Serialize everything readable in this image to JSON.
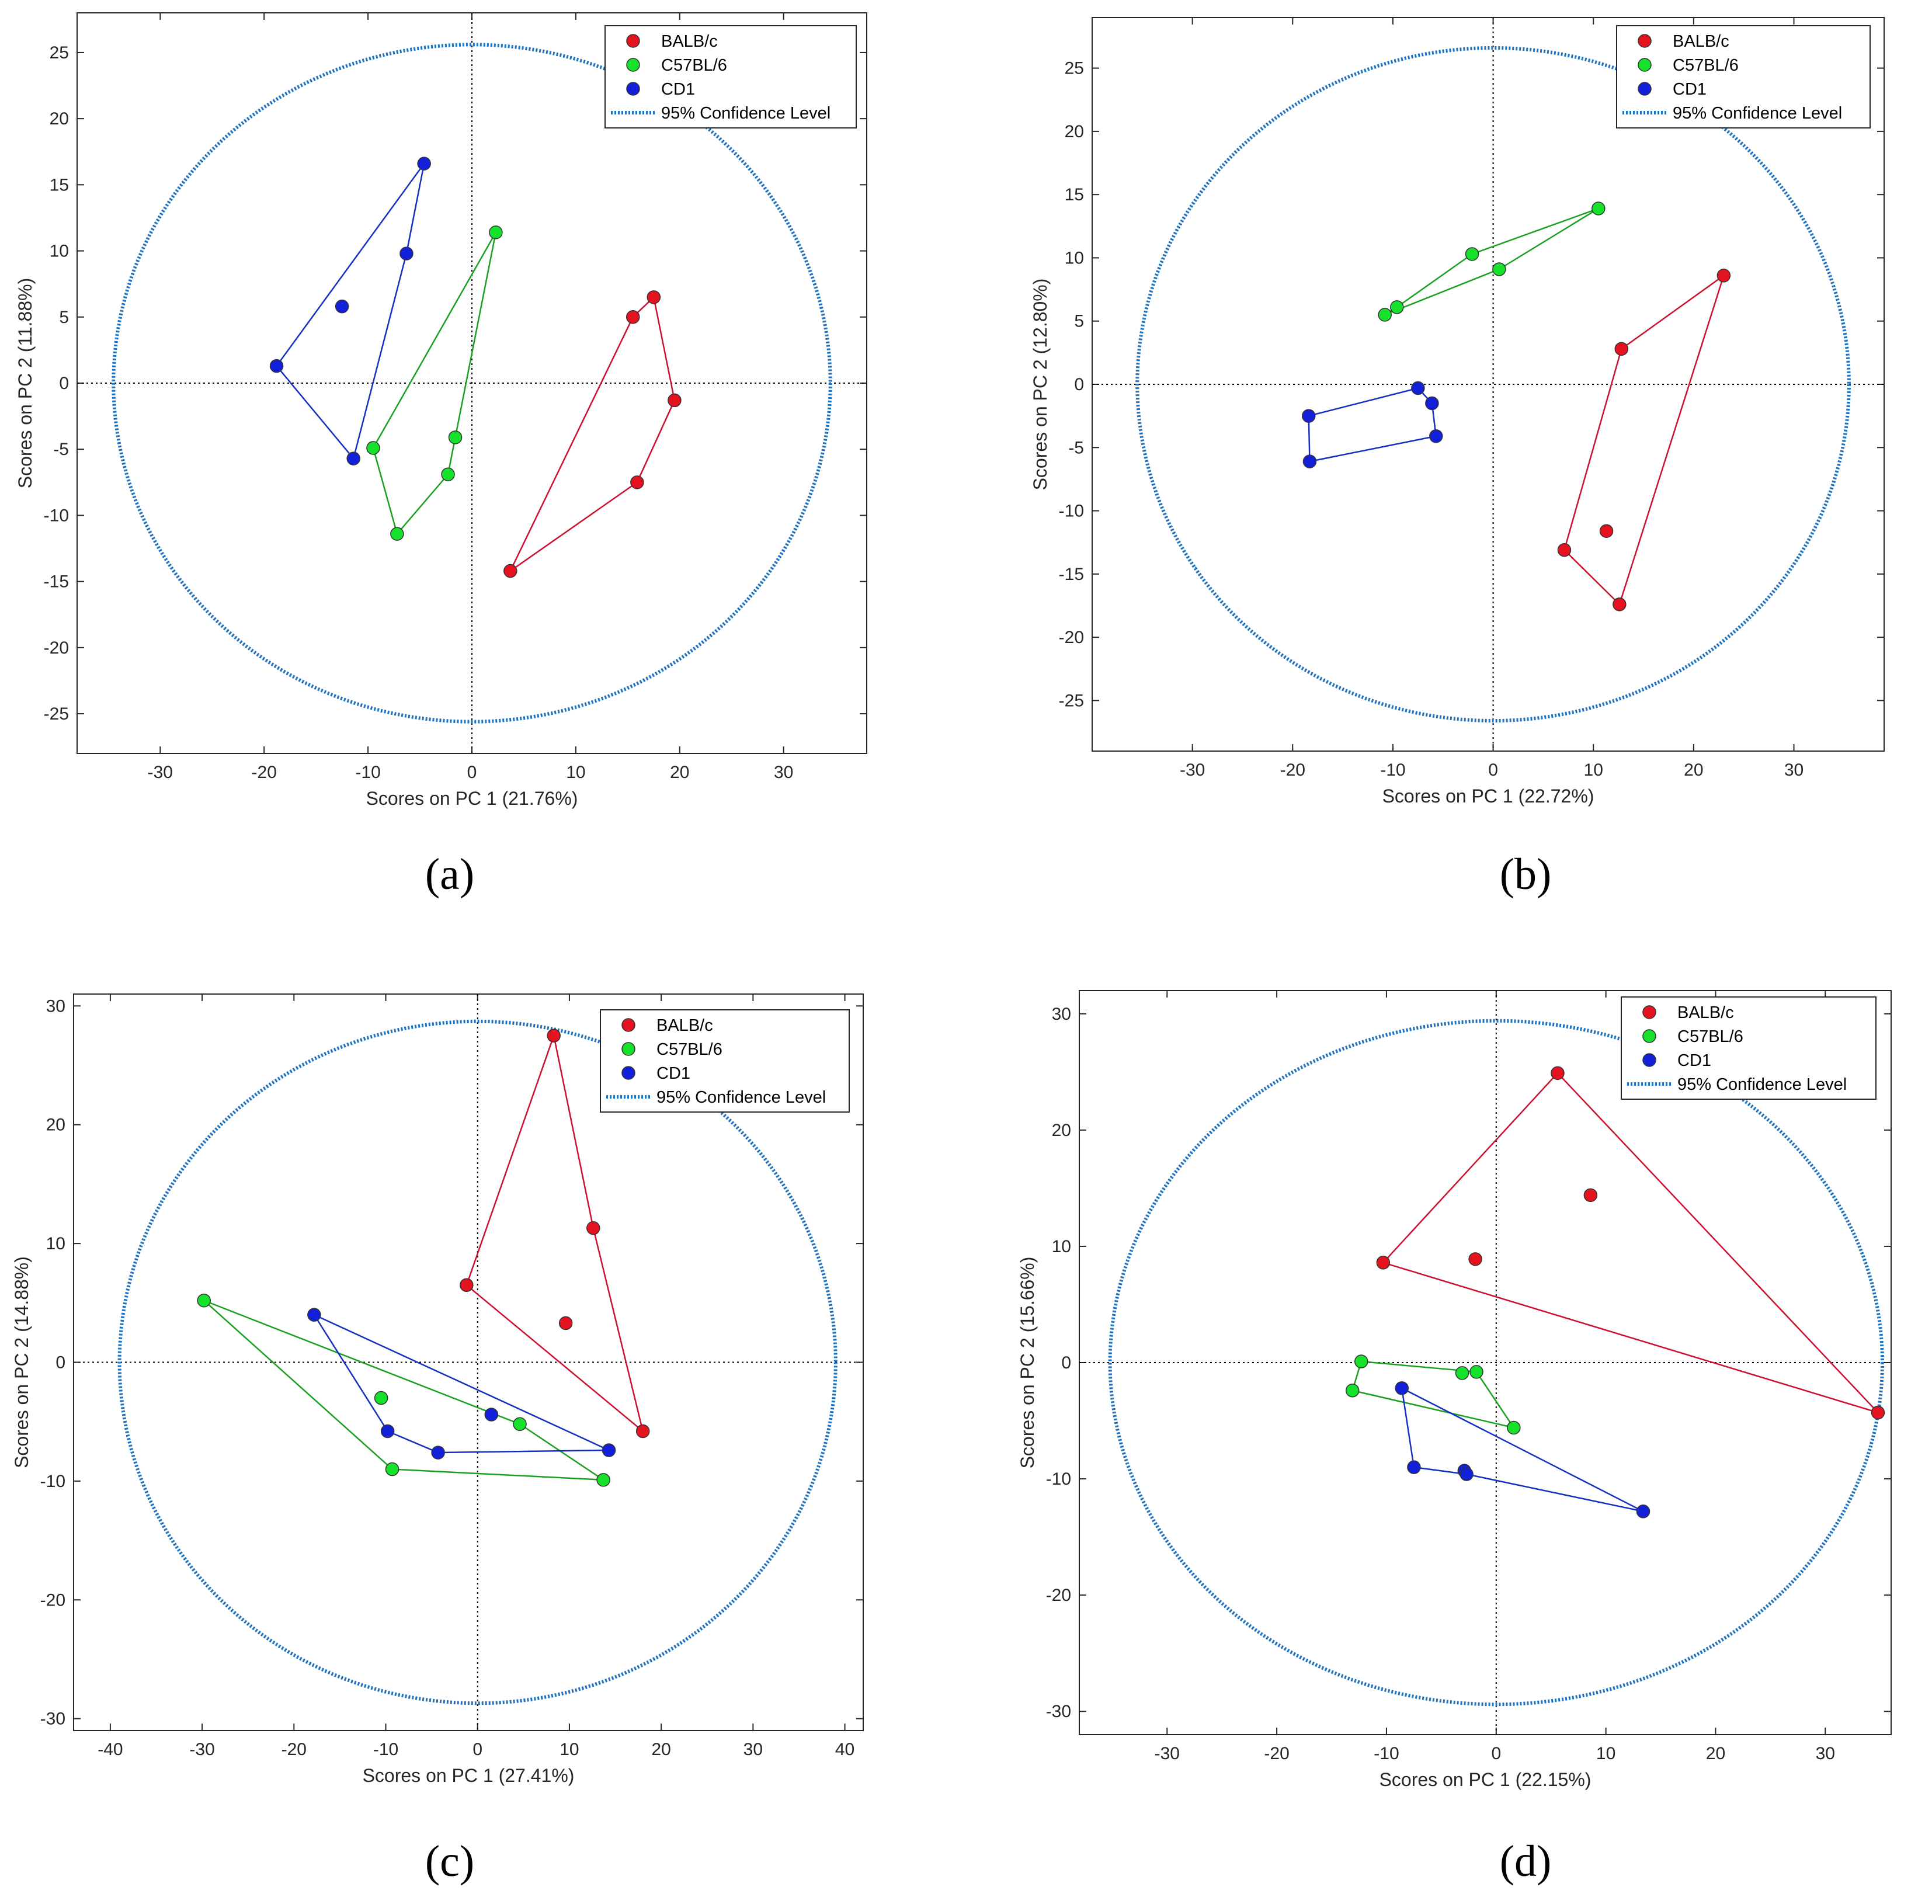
{
  "colors": {
    "BALB/c": "#e5121f",
    "C57BL/6": "#16e12b",
    "CD1": "#1220d9",
    "hull_BALB/c": "#cc1030",
    "hull_C57BL/6": "#1aa020",
    "hull_CD1": "#1530c0",
    "ellipse": "#1c72c0"
  },
  "chart_data": [
    {
      "panel": "a",
      "type": "scatter",
      "xlabel": "Scores on PC 1 (21.76%)",
      "ylabel": "Scores on PC 2 (11.88%)",
      "xlim": [
        -38,
        38
      ],
      "ylim": [
        -28,
        28
      ],
      "xticks": [
        -30,
        -20,
        -10,
        0,
        10,
        20,
        30
      ],
      "yticks": [
        -25,
        -20,
        -15,
        -10,
        -5,
        0,
        5,
        10,
        15,
        20,
        25
      ],
      "ellipse": {
        "rx": 34.5,
        "ry": 25.6
      },
      "legend": [
        "BALB/c",
        "C57BL/6",
        "CD1",
        "95% Confidence Level"
      ],
      "series": [
        {
          "name": "BALB/c",
          "points": [
            [
              17.5,
              6.5
            ],
            [
              15.5,
              5.0
            ],
            [
              19.5,
              -1.3
            ],
            [
              15.9,
              -7.5
            ],
            [
              3.7,
              -14.2
            ]
          ],
          "hull": [
            [
              17.5,
              6.5
            ],
            [
              19.5,
              -1.3
            ],
            [
              15.9,
              -7.5
            ],
            [
              3.7,
              -14.2
            ],
            [
              15.5,
              5.0
            ]
          ]
        },
        {
          "name": "C57BL/6",
          "points": [
            [
              2.3,
              11.4
            ],
            [
              -1.6,
              -4.1
            ],
            [
              -9.5,
              -4.9
            ],
            [
              -2.3,
              -6.9
            ],
            [
              -7.2,
              -11.4
            ]
          ],
          "hull": [
            [
              2.3,
              11.4
            ],
            [
              -1.6,
              -4.1
            ],
            [
              -2.3,
              -6.9
            ],
            [
              -7.2,
              -11.4
            ],
            [
              -9.5,
              -4.9
            ]
          ]
        },
        {
          "name": "CD1",
          "points": [
            [
              -4.6,
              16.6
            ],
            [
              -6.3,
              9.8
            ],
            [
              -12.5,
              5.8
            ],
            [
              -18.8,
              1.3
            ],
            [
              -11.4,
              -5.7
            ]
          ],
          "hull": [
            [
              -4.6,
              16.6
            ],
            [
              -6.3,
              9.8
            ],
            [
              -11.4,
              -5.7
            ],
            [
              -18.8,
              1.3
            ]
          ]
        }
      ]
    },
    {
      "panel": "b",
      "type": "scatter",
      "xlabel": "Scores on PC 1 (22.72%)",
      "ylabel": "Scores on PC 2 (12.80%)",
      "xlim": [
        -40,
        39
      ],
      "ylim": [
        -29,
        29
      ],
      "xticks": [
        -30,
        -20,
        -10,
        0,
        10,
        20,
        30
      ],
      "yticks": [
        -25,
        -20,
        -15,
        -10,
        -5,
        0,
        5,
        10,
        15,
        20,
        25
      ],
      "ellipse": {
        "rx": 35.5,
        "ry": 26.6
      },
      "legend": [
        "BALB/c",
        "C57BL/6",
        "CD1",
        "95% Confidence Level"
      ],
      "series": [
        {
          "name": "BALB/c",
          "points": [
            [
              23.0,
              8.6
            ],
            [
              12.8,
              2.8
            ],
            [
              11.3,
              -11.6
            ],
            [
              7.1,
              -13.1
            ],
            [
              12.6,
              -17.4
            ]
          ],
          "hull": [
            [
              23.0,
              8.6
            ],
            [
              12.6,
              -17.4
            ],
            [
              7.1,
              -13.1
            ],
            [
              12.8,
              2.8
            ]
          ]
        },
        {
          "name": "C57BL/6",
          "points": [
            [
              10.5,
              13.9
            ],
            [
              -2.1,
              10.3
            ],
            [
              0.6,
              9.1
            ],
            [
              -9.6,
              6.1
            ],
            [
              -10.8,
              5.5
            ]
          ],
          "hull": [
            [
              10.5,
              13.9
            ],
            [
              0.6,
              9.1
            ],
            [
              -10.8,
              5.5
            ],
            [
              -9.6,
              6.1
            ],
            [
              -2.1,
              10.3
            ]
          ]
        },
        {
          "name": "CD1",
          "points": [
            [
              -7.5,
              -0.3
            ],
            [
              -6.1,
              -1.5
            ],
            [
              -18.4,
              -2.5
            ],
            [
              -5.7,
              -4.1
            ],
            [
              -18.3,
              -6.1
            ]
          ],
          "hull": [
            [
              -7.5,
              -0.3
            ],
            [
              -6.1,
              -1.5
            ],
            [
              -5.7,
              -4.1
            ],
            [
              -18.3,
              -6.1
            ],
            [
              -18.4,
              -2.5
            ]
          ]
        }
      ]
    },
    {
      "panel": "c",
      "type": "scatter",
      "xlabel": "Scores on PC 1 (27.41%)",
      "ylabel": "Scores on PC 2 (14.88%)",
      "xlim": [
        -44,
        42
      ],
      "ylim": [
        -31,
        31
      ],
      "xticks": [
        -40,
        -30,
        -20,
        -10,
        0,
        10,
        20,
        30,
        40
      ],
      "yticks": [
        -30,
        -20,
        -10,
        0,
        10,
        20,
        30
      ],
      "ellipse": {
        "rx": 39.0,
        "ry": 28.7
      },
      "legend": [
        "BALB/c",
        "C57BL/6",
        "CD1",
        "95% Confidence Level"
      ],
      "series": [
        {
          "name": "BALB/c",
          "points": [
            [
              8.3,
              27.5
            ],
            [
              12.6,
              11.3
            ],
            [
              -1.2,
              6.5
            ],
            [
              9.6,
              3.3
            ],
            [
              18.0,
              -5.8
            ]
          ],
          "hull": [
            [
              8.3,
              27.5
            ],
            [
              12.6,
              11.3
            ],
            [
              18.0,
              -5.8
            ],
            [
              -1.2,
              6.5
            ]
          ]
        },
        {
          "name": "C57BL/6",
          "points": [
            [
              -29.8,
              5.2
            ],
            [
              -10.5,
              -3.0
            ],
            [
              4.6,
              -5.2
            ],
            [
              -9.3,
              -9.0
            ],
            [
              13.7,
              -9.9
            ]
          ],
          "hull": [
            [
              -29.8,
              5.2
            ],
            [
              4.6,
              -5.2
            ],
            [
              13.7,
              -9.9
            ],
            [
              -9.3,
              -9.0
            ]
          ]
        },
        {
          "name": "CD1",
          "points": [
            [
              -17.8,
              4.0
            ],
            [
              1.5,
              -4.4
            ],
            [
              -9.8,
              -5.8
            ],
            [
              -4.3,
              -7.6
            ],
            [
              14.3,
              -7.4
            ]
          ],
          "hull": [
            [
              -17.8,
              4.0
            ],
            [
              14.3,
              -7.4
            ],
            [
              -4.3,
              -7.6
            ],
            [
              -9.8,
              -5.8
            ]
          ]
        }
      ]
    },
    {
      "panel": "d",
      "type": "scatter",
      "xlabel": "Scores on PC 1 (22.15%)",
      "ylabel": "Scores on PC 2 (15.66%)",
      "xlim": [
        -38,
        36
      ],
      "ylim": [
        -32,
        32
      ],
      "xticks": [
        -30,
        -20,
        -10,
        0,
        10,
        20,
        30
      ],
      "yticks": [
        -30,
        -20,
        -10,
        0,
        10,
        20,
        30
      ],
      "ellipse": {
        "rx": 35.2,
        "ry": 29.4
      },
      "legend": [
        "BALB/c",
        "C57BL/6",
        "CD1",
        "95% Confidence Level"
      ],
      "series": [
        {
          "name": "BALB/c",
          "points": [
            [
              5.6,
              24.9
            ],
            [
              8.6,
              14.4
            ],
            [
              -10.3,
              8.6
            ],
            [
              -1.9,
              8.9
            ],
            [
              34.8,
              -4.3
            ]
          ],
          "hull": [
            [
              5.6,
              24.9
            ],
            [
              34.8,
              -4.3
            ],
            [
              -10.3,
              8.6
            ]
          ]
        },
        {
          "name": "C57BL/6",
          "points": [
            [
              -12.3,
              0.1
            ],
            [
              -3.1,
              -0.9
            ],
            [
              -1.8,
              -0.8
            ],
            [
              -13.1,
              -2.4
            ],
            [
              1.6,
              -5.6
            ]
          ],
          "hull": [
            [
              -12.3,
              0.1
            ],
            [
              -1.8,
              -0.8
            ],
            [
              1.6,
              -5.6
            ],
            [
              -13.1,
              -2.4
            ]
          ]
        },
        {
          "name": "CD1",
          "points": [
            [
              -8.6,
              -2.2
            ],
            [
              -7.5,
              -9.0
            ],
            [
              -2.9,
              -9.3
            ],
            [
              -2.7,
              -9.6
            ],
            [
              13.4,
              -12.8
            ]
          ],
          "hull": [
            [
              -8.6,
              -2.2
            ],
            [
              13.4,
              -12.8
            ],
            [
              -2.7,
              -9.6
            ],
            [
              -7.5,
              -9.0
            ]
          ]
        }
      ]
    }
  ],
  "panel_labels": [
    "(a)",
    "(b)",
    "(c)",
    "(d)"
  ]
}
